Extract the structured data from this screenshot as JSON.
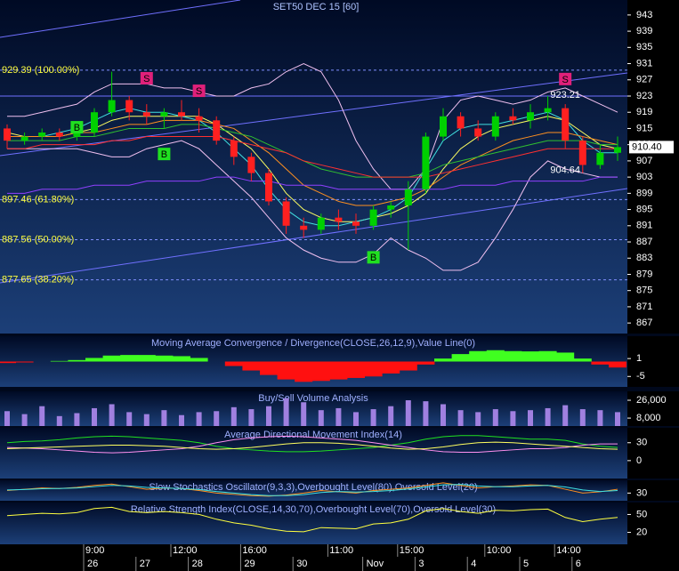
{
  "chart_data": [
    {
      "type": "candlestick",
      "title": "SET50 DEC 15   [60]",
      "open": [
        915,
        912,
        913,
        914,
        913,
        914,
        919,
        922,
        919,
        918,
        919,
        918,
        917,
        912,
        908,
        904,
        897,
        891,
        890,
        893,
        892,
        891,
        895,
        896,
        900,
        913,
        918,
        915,
        913,
        918,
        917,
        919,
        920,
        912,
        906,
        909
      ],
      "high": [
        916,
        914,
        915,
        915,
        915,
        920,
        929,
        923,
        921,
        920,
        922,
        920,
        918,
        913,
        909,
        905,
        898,
        893,
        894,
        895,
        894,
        896,
        897,
        902,
        914,
        920,
        919,
        917,
        919,
        920,
        921,
        923,
        921,
        913,
        911,
        913
      ],
      "low": [
        910,
        911,
        912,
        912,
        912,
        913,
        918,
        917,
        916,
        915,
        917,
        914,
        911,
        906,
        902,
        896,
        889,
        888,
        889,
        890,
        889,
        890,
        893,
        885,
        899,
        912,
        913,
        912,
        912,
        916,
        915,
        917,
        910,
        904,
        905,
        907
      ],
      "close": [
        912,
        913,
        914,
        913,
        914,
        919,
        922,
        919,
        918,
        919,
        918,
        917,
        912,
        908,
        904,
        897,
        891,
        890,
        893,
        892,
        891,
        895,
        896,
        900,
        913,
        918,
        915,
        913,
        918,
        917,
        919,
        920,
        912,
        906,
        909,
        910.4
      ],
      "up_color": "#00d000",
      "down_color": "#ff2020",
      "series": [
        {
          "color": "#f0c0f0",
          "values": [
            918,
            918,
            919,
            920,
            921,
            924,
            926,
            926,
            926,
            925,
            925,
            924,
            923,
            923,
            925,
            926,
            929,
            931,
            929,
            922,
            912,
            905,
            900,
            900,
            905,
            917,
            922,
            923,
            922,
            921,
            922,
            924,
            925,
            923,
            921,
            919
          ]
        },
        {
          "color": "#f0c0f0",
          "values": [
            910,
            910,
            910,
            910,
            910,
            909,
            908,
            908,
            910,
            911,
            912,
            910,
            906,
            902,
            898,
            893,
            888,
            885,
            883,
            882,
            882,
            884,
            888,
            885,
            883,
            880,
            880,
            882,
            888,
            895,
            903,
            907,
            905,
            904,
            903,
            903
          ]
        },
        {
          "color": "#ffff60",
          "values": [
            914,
            913,
            913,
            913,
            914,
            915,
            917,
            918,
            918,
            918,
            918,
            918,
            916,
            913,
            910,
            905,
            899,
            895,
            893,
            892,
            892,
            893,
            894,
            896,
            899,
            905,
            910,
            913,
            915,
            916,
            917,
            918,
            917,
            914,
            911,
            910
          ]
        },
        {
          "color": "#40e0e0",
          "values": [
            913,
            913,
            913,
            914,
            915,
            917,
            919,
            920,
            919,
            919,
            918,
            917,
            914,
            910,
            906,
            900,
            895,
            892,
            891,
            891,
            892,
            893,
            895,
            898,
            905,
            912,
            915,
            916,
            916,
            917,
            918,
            919,
            917,
            912,
            909,
            909
          ]
        },
        {
          "color": "#ff9020",
          "values": [
            913,
            913,
            913,
            913,
            914,
            914,
            915,
            916,
            916,
            917,
            917,
            917,
            916,
            915,
            912,
            909,
            905,
            901,
            899,
            897,
            896,
            896,
            897,
            898,
            900,
            903,
            906,
            908,
            910,
            912,
            913,
            914,
            914,
            913,
            912,
            911
          ]
        },
        {
          "color": "#30c030",
          "values": [
            912,
            912,
            912,
            912,
            913,
            913,
            914,
            915,
            915,
            915,
            916,
            916,
            915,
            914,
            913,
            911,
            909,
            907,
            905,
            904,
            903,
            903,
            903,
            903,
            904,
            906,
            907,
            908,
            909,
            910,
            911,
            912,
            912,
            912,
            911,
            911
          ]
        },
        {
          "color": "#ff3030",
          "values": [
            910,
            910,
            911,
            911,
            911,
            911,
            912,
            912,
            913,
            913,
            913,
            913,
            913,
            912,
            911,
            910,
            909,
            907,
            906,
            905,
            904,
            903,
            903,
            903,
            903,
            904,
            905,
            906,
            907,
            908,
            909,
            910,
            910,
            910,
            910,
            910
          ]
        },
        {
          "color": "#9040ff",
          "values": [
            899,
            899,
            900,
            900,
            900,
            901,
            901,
            901,
            902,
            902,
            902,
            902,
            903,
            903,
            902,
            902,
            901,
            901,
            901,
            900,
            900,
            900,
            900,
            900,
            900,
            900,
            901,
            901,
            901,
            902,
            902,
            902,
            902,
            902,
            903,
            903
          ]
        }
      ],
      "fib_levels": [
        {
          "value": 929.39,
          "label": "929.39 (100.00%)"
        },
        {
          "value": 897.46,
          "label": "897.46 (61.80%)"
        },
        {
          "value": 887.56,
          "label": "887.56 (50.00%)"
        },
        {
          "value": 877.65,
          "label": "877.65 (38.20%)"
        }
      ],
      "price_annotations": [
        {
          "index": 32,
          "value": 923.21
        },
        {
          "index": 32,
          "value": 904.64
        }
      ],
      "last_price": {
        "value": 910.4,
        "label": "910.40"
      },
      "signals": [
        {
          "index": 4,
          "label": "B",
          "value": 915.3
        },
        {
          "index": 8,
          "label": "S",
          "value": 927.4
        },
        {
          "index": 9,
          "label": "B",
          "value": 908.7
        },
        {
          "index": 11,
          "label": "S",
          "value": 924.3
        },
        {
          "index": 21,
          "label": "B",
          "value": 883.2
        },
        {
          "index": 32,
          "label": "S",
          "value": 927.2
        }
      ],
      "ylim": [
        864.4,
        946.7
      ],
      "yticks": [
        867,
        871,
        875,
        879,
        883,
        887,
        891,
        895,
        899,
        903,
        907,
        911,
        915,
        919,
        923,
        927,
        931,
        935,
        939,
        943
      ]
    },
    {
      "type": "bar",
      "title": "Moving Average Convergence / Divergence(CLOSE,26,12,9),Value Line(0)",
      "values": [
        -0.5,
        -0.3,
        0,
        0.2,
        0.5,
        1.2,
        2,
        2.2,
        2.2,
        2,
        1.8,
        1.2,
        0,
        -1.5,
        -3,
        -4.5,
        -6,
        -6.8,
        -6.5,
        -6,
        -5.5,
        -5,
        -4,
        -3,
        -1,
        1,
        2.5,
        3.5,
        3.8,
        3.5,
        3.4,
        3.5,
        3,
        1,
        -1,
        -2
      ],
      "up_color": "#40ff20",
      "down_color": "#ff1010",
      "ylim": [
        -8.5,
        8.5
      ],
      "yticks": [
        -5,
        1
      ]
    },
    {
      "type": "bar",
      "title": "Buy/Sell Volume Analysis",
      "values": [
        15000,
        12000,
        20000,
        10000,
        13000,
        18000,
        22000,
        14000,
        12000,
        16000,
        11000,
        14000,
        15000,
        19000,
        17000,
        20000,
        28000,
        24000,
        16000,
        18000,
        14000,
        17000,
        20000,
        26000,
        25000,
        22000,
        16000,
        14000,
        17000,
        15000,
        16000,
        18000,
        21000,
        17000,
        16000,
        14000
      ],
      "color": "#a080e0",
      "ylim": [
        0,
        35000
      ],
      "yticks": [
        {
          "value": 8000,
          "label": "8,000"
        },
        {
          "value": 26000,
          "label": "26,000"
        }
      ]
    },
    {
      "type": "line",
      "title": "Average Directional Movement Index(14)",
      "series": [
        {
          "color": "#20e020",
          "values": [
            30,
            32,
            33,
            35,
            38,
            40,
            41,
            40,
            38,
            36,
            34,
            30,
            24,
            20,
            18,
            16,
            15,
            15,
            16,
            18,
            20,
            22,
            26,
            30,
            36,
            40,
            42,
            42,
            40,
            38,
            36,
            36,
            34,
            28,
            24,
            22
          ]
        },
        {
          "color": "#ff90f0",
          "values": [
            22,
            21,
            20,
            18,
            16,
            14,
            13,
            14,
            16,
            18,
            20,
            24,
            30,
            35,
            38,
            40,
            41,
            40,
            38,
            36,
            34,
            30,
            26,
            22,
            18,
            15,
            14,
            14,
            16,
            18,
            20,
            20,
            22,
            26,
            28,
            28
          ]
        },
        {
          "color": "#ffff60",
          "values": [
            20,
            21,
            22,
            23,
            24,
            25,
            26,
            26,
            25,
            24,
            22,
            20,
            19,
            20,
            22,
            25,
            28,
            30,
            30,
            29,
            27,
            24,
            21,
            19,
            20,
            23,
            27,
            30,
            31,
            30,
            28,
            26,
            24,
            22,
            20,
            19
          ]
        }
      ],
      "ylim": [
        -30,
        55
      ],
      "yticks": [
        0,
        30
      ]
    },
    {
      "type": "line",
      "title": "Slow Stochastics Oscillator(9,3,3),Overbought Level(80),Oversold Level(20)",
      "series": [
        {
          "color": "#ff9020",
          "values": [
            40,
            45,
            50,
            48,
            52,
            60,
            65,
            55,
            45,
            50,
            48,
            40,
            30,
            25,
            20,
            18,
            22,
            30,
            40,
            35,
            30,
            40,
            45,
            50,
            60,
            70,
            60,
            50,
            55,
            58,
            62,
            60,
            45,
            30,
            35,
            45
          ]
        },
        {
          "color": "#40e0e0",
          "values": [
            42,
            44,
            47,
            48,
            50,
            55,
            60,
            58,
            52,
            50,
            48,
            44,
            36,
            30,
            24,
            20,
            20,
            24,
            32,
            36,
            34,
            36,
            40,
            46,
            54,
            62,
            64,
            58,
            55,
            55,
            58,
            60,
            54,
            42,
            36,
            40
          ]
        }
      ],
      "ylim": [
        0,
        80
      ],
      "yticks": [
        30
      ]
    },
    {
      "type": "line",
      "title": "Relative Strength Index(CLOSE,14,30,70),Overbought Level(70),Oversold Level(30)",
      "series": [
        {
          "color": "#ffff40",
          "values": [
            48,
            50,
            52,
            51,
            53,
            60,
            62,
            55,
            53,
            55,
            53,
            50,
            42,
            36,
            32,
            26,
            22,
            21,
            28,
            27,
            26,
            34,
            36,
            42,
            56,
            60,
            55,
            52,
            57,
            56,
            58,
            59,
            45,
            38,
            42,
            45
          ]
        }
      ],
      "ylim": [
        0,
        70
      ],
      "yticks": [
        20,
        50
      ]
    }
  ],
  "x_axis": {
    "time_labels": [
      null,
      null,
      null,
      null,
      null,
      "9:00",
      null,
      null,
      null,
      null,
      "12:00",
      null,
      null,
      null,
      "16:00",
      null,
      null,
      null,
      null,
      "11:00",
      null,
      null,
      null,
      "15:00",
      null,
      null,
      null,
      null,
      "10:00",
      null,
      null,
      null,
      "14:00",
      null,
      null,
      null
    ],
    "date_labels": [
      null,
      null,
      null,
      null,
      null,
      "26",
      null,
      null,
      "27",
      null,
      null,
      "28",
      null,
      null,
      "29",
      null,
      null,
      "30",
      null,
      null,
      null,
      "Nov",
      null,
      null,
      "3",
      null,
      null,
      "4",
      null,
      null,
      "5",
      null,
      null,
      "6",
      null,
      null
    ]
  }
}
